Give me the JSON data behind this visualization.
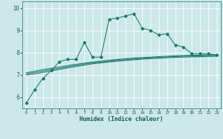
{
  "title": "",
  "xlabel": "Humidex (Indice chaleur)",
  "xlim": [
    -0.5,
    23.5
  ],
  "ylim": [
    5.5,
    10.3
  ],
  "yticks": [
    6,
    7,
    8,
    9,
    10
  ],
  "xticks": [
    0,
    1,
    2,
    3,
    4,
    5,
    6,
    7,
    8,
    9,
    10,
    11,
    12,
    13,
    14,
    15,
    16,
    17,
    18,
    19,
    20,
    21,
    22,
    23
  ],
  "bg_color": "#cce8e8",
  "grid_color": "#ffffff",
  "line_color": "#1a7a6e",
  "line1_x": [
    0,
    1,
    2,
    3,
    4,
    5,
    6,
    7,
    8,
    9,
    10,
    11,
    12,
    13,
    14,
    15,
    16,
    17,
    18,
    19,
    20,
    21,
    22,
    23
  ],
  "line1_y": [
    5.75,
    6.35,
    6.85,
    7.2,
    7.6,
    7.7,
    7.7,
    8.45,
    7.8,
    7.8,
    9.5,
    9.55,
    9.65,
    9.75,
    9.1,
    9.0,
    8.8,
    8.85,
    8.35,
    8.25,
    7.95,
    7.95,
    7.95,
    7.9
  ],
  "line2_x": [
    0,
    1,
    2,
    3,
    4,
    5,
    6,
    7,
    8,
    9,
    10,
    11,
    12,
    13,
    14,
    15,
    16,
    17,
    18,
    19,
    20,
    21,
    22,
    23
  ],
  "line2_y": [
    7.0,
    7.05,
    7.12,
    7.18,
    7.25,
    7.32,
    7.38,
    7.44,
    7.5,
    7.54,
    7.58,
    7.62,
    7.65,
    7.68,
    7.71,
    7.73,
    7.75,
    7.77,
    7.79,
    7.8,
    7.81,
    7.82,
    7.83,
    7.84
  ],
  "line3_x": [
    0,
    1,
    2,
    3,
    4,
    5,
    6,
    7,
    8,
    9,
    10,
    11,
    12,
    13,
    14,
    15,
    16,
    17,
    18,
    19,
    20,
    21,
    22,
    23
  ],
  "line3_y": [
    7.05,
    7.11,
    7.18,
    7.24,
    7.3,
    7.37,
    7.43,
    7.49,
    7.54,
    7.58,
    7.62,
    7.66,
    7.69,
    7.72,
    7.75,
    7.77,
    7.79,
    7.81,
    7.82,
    7.84,
    7.85,
    7.86,
    7.87,
    7.88
  ],
  "line4_x": [
    0,
    1,
    2,
    3,
    4,
    5,
    6,
    7,
    8,
    9,
    10,
    11,
    12,
    13,
    14,
    15,
    16,
    17,
    18,
    19,
    20,
    21,
    22,
    23
  ],
  "line4_y": [
    7.1,
    7.17,
    7.24,
    7.3,
    7.36,
    7.42,
    7.48,
    7.53,
    7.58,
    7.62,
    7.66,
    7.7,
    7.73,
    7.76,
    7.78,
    7.8,
    7.82,
    7.84,
    7.86,
    7.87,
    7.88,
    7.89,
    7.9,
    7.91
  ]
}
